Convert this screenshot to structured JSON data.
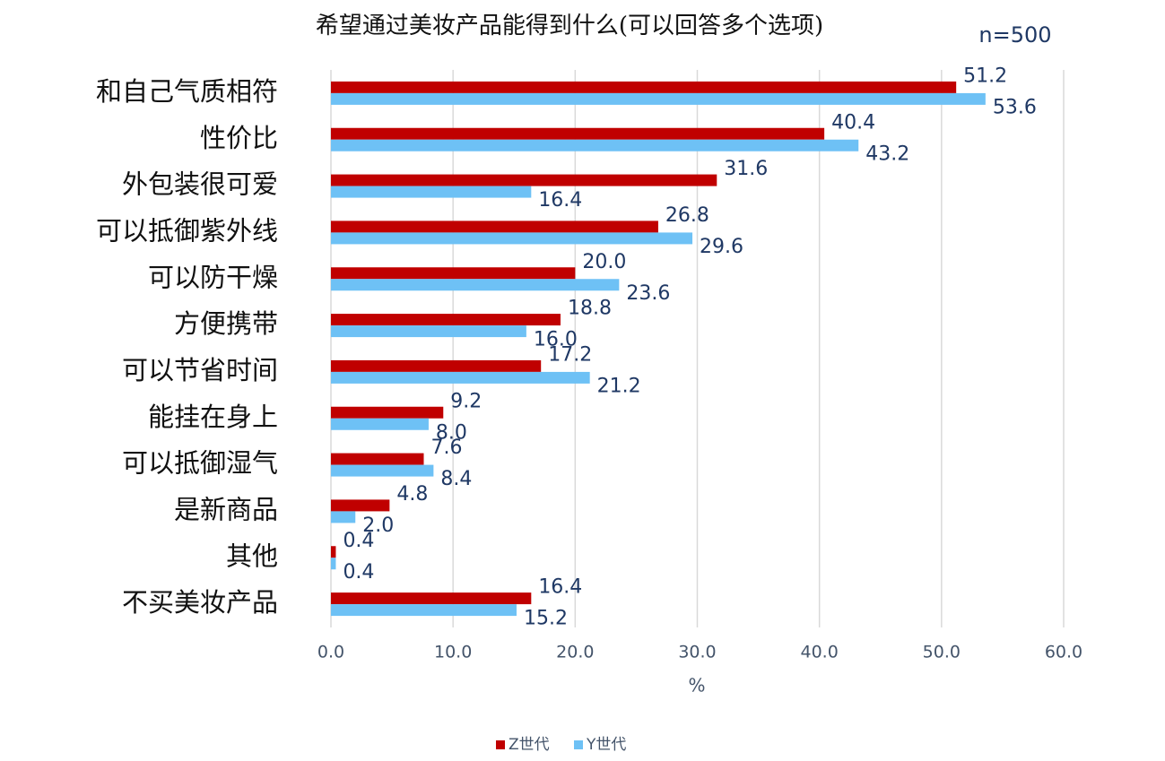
{
  "chart_data": {
    "type": "bar",
    "orientation": "horizontal",
    "title": "希望通过美妆产品能得到什么(可以回答多个选项)",
    "annotation": "n=500",
    "x_label": "%",
    "categories": [
      "和自己气质相符",
      "性价比",
      "外包装很可爱",
      "可以抵御紫外线",
      "可以防干燥",
      "方便携带",
      "可以节省时间",
      "能挂在身上",
      "可以抵御湿气",
      "是新商品",
      "其他",
      "不买美妆产品"
    ],
    "series": [
      {
        "name": "Z世代",
        "color": "#c00000",
        "values": [
          51.2,
          40.4,
          31.6,
          26.8,
          20.0,
          18.8,
          17.2,
          9.2,
          7.6,
          4.8,
          0.4,
          16.4
        ],
        "value_labels": [
          "51.2",
          "40.4",
          "31.6",
          "26.8",
          "20.0",
          "18.8",
          "17.2",
          "9.2",
          "7.6",
          "4.8",
          "0.4",
          "16.4"
        ]
      },
      {
        "name": "Y世代",
        "color": "#6ec1f5",
        "values": [
          53.6,
          43.2,
          16.4,
          29.6,
          23.6,
          16.0,
          21.2,
          8.0,
          8.4,
          2.0,
          0.4,
          15.2
        ],
        "value_labels": [
          "53.6",
          "43.2",
          "16.4",
          "29.6",
          "23.6",
          "16.0",
          "21.2",
          "8.0",
          "8.4",
          "2.0",
          "0.4",
          "15.2"
        ]
      }
    ],
    "xlim": [
      0,
      60
    ],
    "xticks": [
      {
        "value": 0,
        "label": "0.0"
      },
      {
        "value": 10,
        "label": "10.0"
      },
      {
        "value": 20,
        "label": "20.0"
      },
      {
        "value": 30,
        "label": "30.0"
      },
      {
        "value": 40,
        "label": "40.0"
      },
      {
        "value": 50,
        "label": "50.0"
      },
      {
        "value": 60,
        "label": "60.0"
      }
    ],
    "grid": true,
    "legend": "bottom"
  }
}
